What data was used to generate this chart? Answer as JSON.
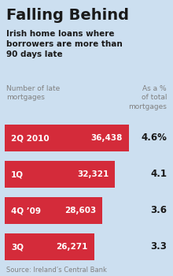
{
  "title": "Falling Behind",
  "subtitle": "Irish home loans where\nborrowers are more than\n90 days late",
  "col_label_left": "Number of late\nmortgages",
  "col_label_right": "As a %\nof total\nmortgages",
  "rows": [
    {
      "label": "2Q 2010",
      "value": 36438,
      "value_str": "36,438",
      "pct": "4.6%"
    },
    {
      "label": "1Q",
      "value": 32321,
      "value_str": "32,321",
      "pct": "4.1"
    },
    {
      "label": "4Q ’09",
      "value": 28603,
      "value_str": "28,603",
      "pct": "3.6"
    },
    {
      "label": "3Q",
      "value": 26271,
      "value_str": "26,271",
      "pct": "3.3"
    }
  ],
  "bar_color": "#D42B3A",
  "bg_color": "#CCDFF0",
  "white": "#FFFFFF",
  "text_dark": "#1a1a1a",
  "text_gray": "#808080",
  "source": "Source: Ireland’s Central Bank",
  "max_value": 36438
}
